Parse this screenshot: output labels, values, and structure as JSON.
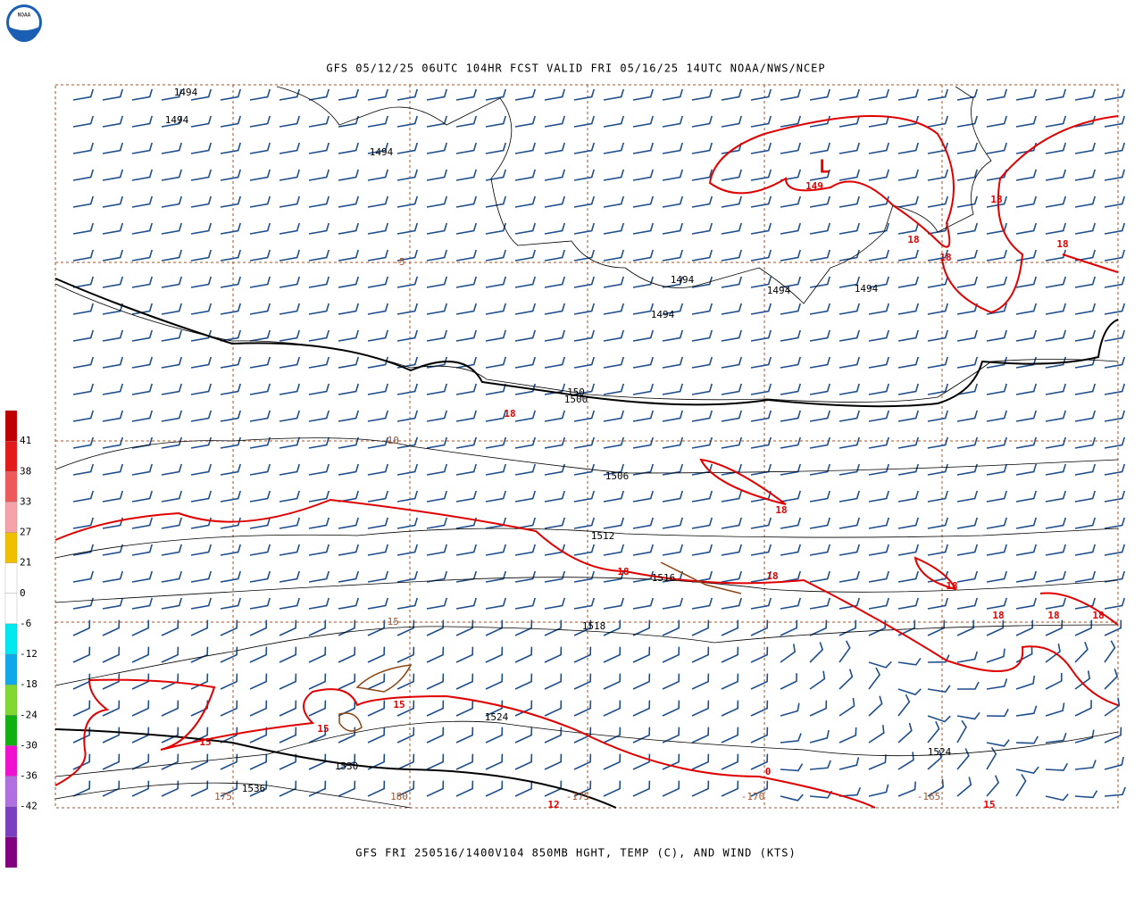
{
  "logo": "NOAA",
  "header": {
    "title": "GFS 05/12/25 06UTC 104HR FCST VALID FRI 05/16/25 14UTC NOAA/NWS/NCEP"
  },
  "footer": {
    "caption": "GFS FRI 250516/1400V104 850MB HGHT, TEMP (C), AND WIND (KTS)"
  },
  "colorbar": {
    "colors": [
      "#c00000",
      "#e41a1a",
      "#ee5a5a",
      "#f5a3a8",
      "#f0c000",
      "#ffffff",
      "#ffffff",
      "#00e8f0",
      "#10a8e8",
      "#80d830",
      "#10b010",
      "#f010d0",
      "#b070e0",
      "#7a3fc0",
      "#800080"
    ],
    "labels": [
      "41",
      "38",
      "33",
      "27",
      "21",
      "0",
      "-6",
      "-12",
      "-18",
      "-24",
      "-30",
      "-36",
      "-42"
    ]
  },
  "map": {
    "height_labels": [
      "1494",
      "1494",
      "1494",
      "1494",
      "1494",
      "1494",
      "1494",
      "150",
      "1500",
      "1506",
      "1512",
      "1516",
      "1518",
      "1524",
      "1524",
      "1530",
      "1536"
    ],
    "low_label": "L",
    "temperature_labels": [
      "149",
      "18",
      "18",
      "18",
      "18",
      "18",
      "18",
      "18",
      "18",
      "18",
      "18",
      "18",
      "18",
      "15",
      "15",
      "15",
      "0",
      "15",
      "12"
    ],
    "coordinate_labels": [
      "-5",
      "-10",
      "-15",
      "175",
      "180",
      "-175",
      "-170",
      "-165"
    ]
  }
}
